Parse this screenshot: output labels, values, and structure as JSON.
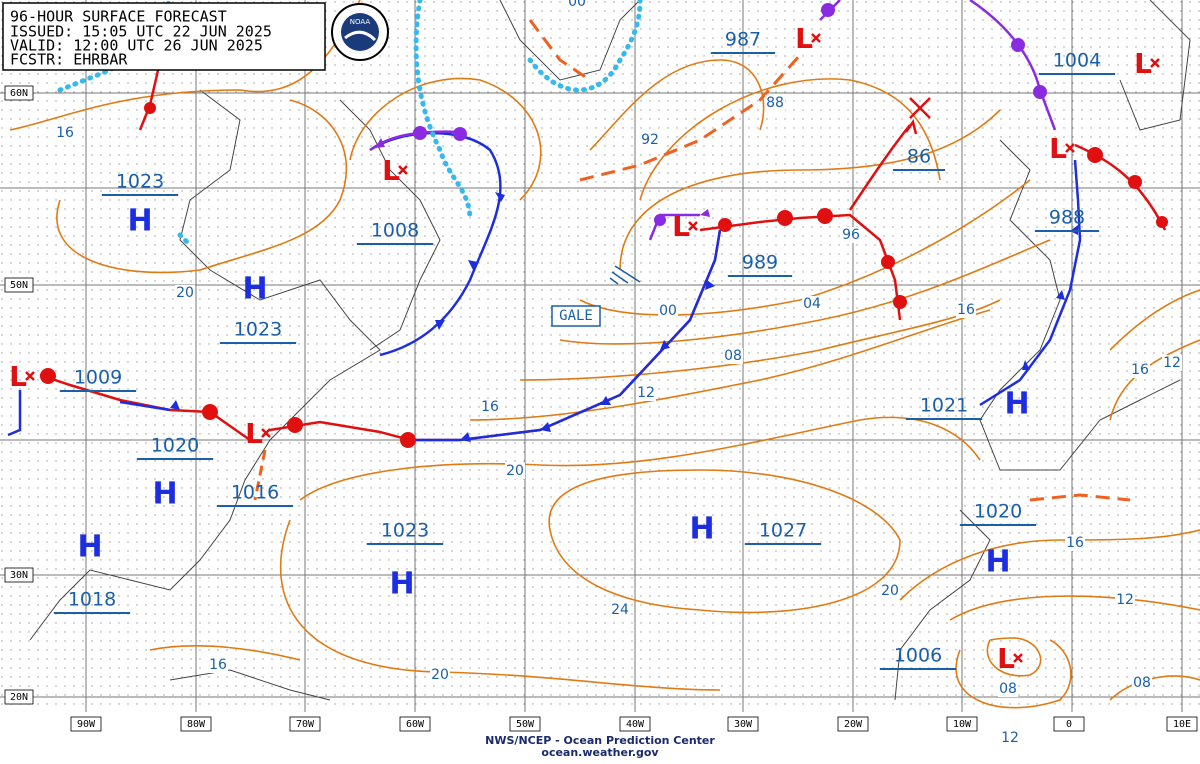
{
  "header": {
    "title": "96-HOUR SURFACE FORECAST",
    "issued": "ISSUED: 15:05 UTC 22 JUN 2025",
    "valid": "VALID:  12:00 UTC 26 JUN 2025",
    "forecaster": "FCSTR: EHRBAR",
    "logo": "NOAA"
  },
  "high_symbols": [
    "H",
    "H",
    "H",
    "H",
    "H",
    "H",
    "H",
    "H"
  ],
  "low_symbols": [
    "L",
    "L",
    "L",
    "L",
    "L",
    "L",
    "L",
    "L"
  ],
  "pressure_labels": [
    "1023",
    "1008",
    "1023",
    "1009",
    "1020",
    "1016",
    "1023",
    "1018",
    "1027",
    "987",
    "989",
    "86",
    "1004",
    "988",
    "1021",
    "1020",
    "1006"
  ],
  "isobar_labels": [
    "16",
    "20",
    "92",
    "88",
    "96",
    "00",
    "04",
    "08",
    "12",
    "16",
    "20",
    "16",
    "16",
    "12",
    "16",
    "24",
    "20",
    "12",
    "16",
    "20",
    "08",
    "08",
    "12",
    "00"
  ],
  "latitude_labels": [
    "60N",
    "50N",
    "30N",
    "20N"
  ],
  "longitude_labels": [
    "90W",
    "80W",
    "70W",
    "60W",
    "50W",
    "40W",
    "30W",
    "20W",
    "10W",
    "0",
    "10E"
  ],
  "warning": "GALE",
  "footer": {
    "agency": "NWS/NCEP - Ocean Prediction Center",
    "site": "ocean.weather.gov"
  }
}
